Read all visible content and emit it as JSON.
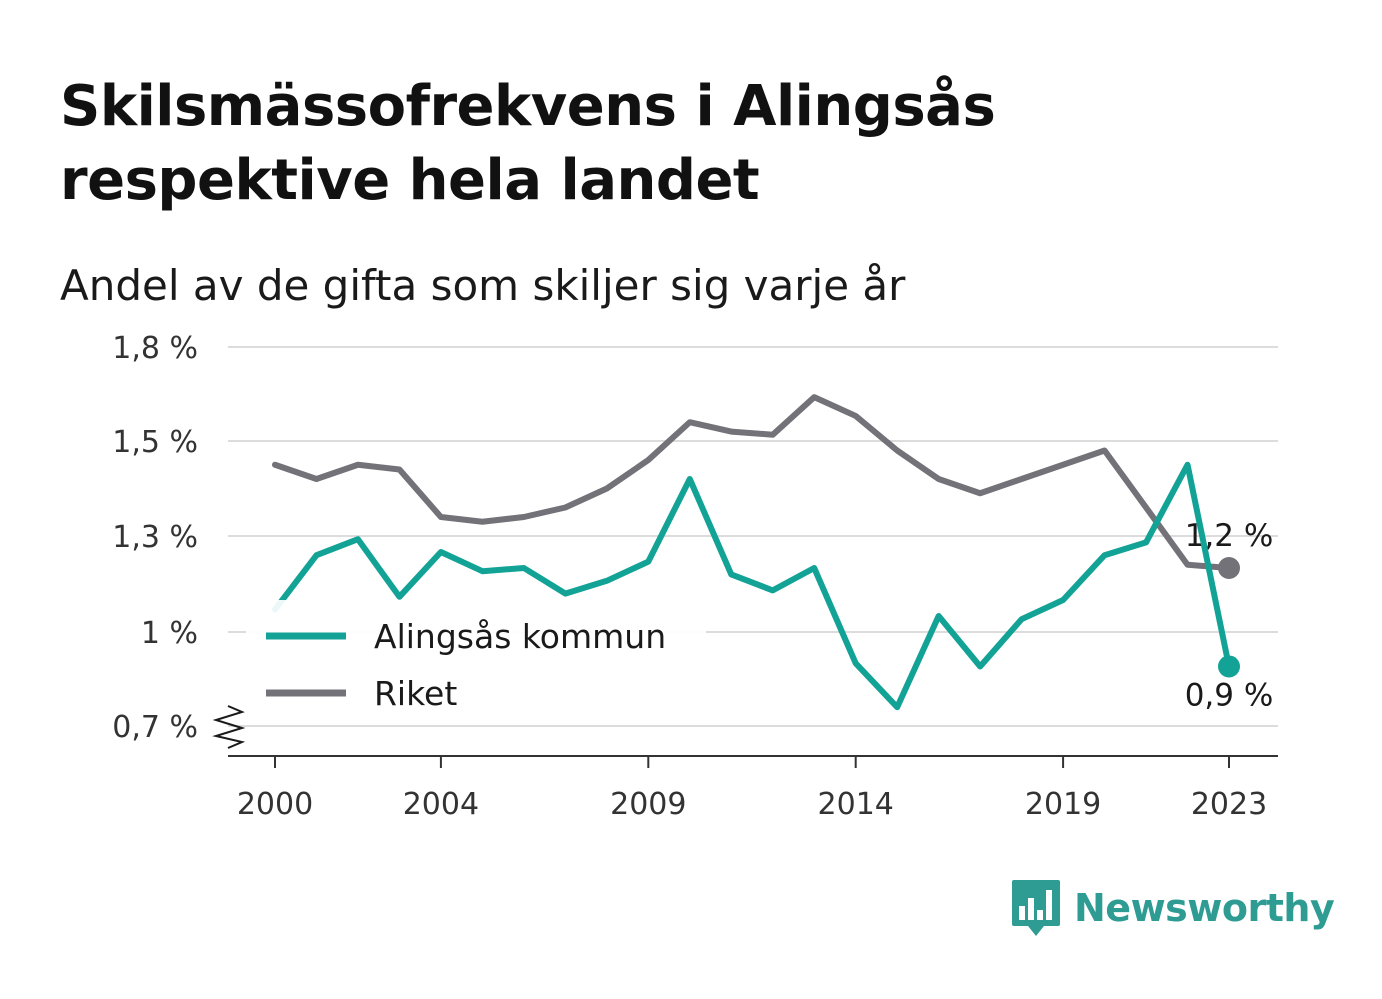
{
  "header": {
    "title": "Skilsmässofrekvens i Alingsås respektive hela landet",
    "subtitle": "Andel av de gifta som skiljer sig varje år"
  },
  "brand": {
    "name": "Newsworthy",
    "color": "#2f9c94",
    "icon": "bar-chart-speech-bubble-icon"
  },
  "chart_data": {
    "type": "line",
    "title": "Skilsmässofrekvens i Alingsås respektive hela landet",
    "subtitle": "Andel av de gifta som skiljer sig varje år",
    "x": [
      2000,
      2001,
      2002,
      2003,
      2004,
      2005,
      2006,
      2007,
      2008,
      2009,
      2010,
      2011,
      2012,
      2013,
      2014,
      2015,
      2016,
      2017,
      2018,
      2019,
      2020,
      2021,
      2022,
      2023
    ],
    "x_ticks": [
      2000,
      2004,
      2009,
      2014,
      2019,
      2023
    ],
    "y_ticks": [
      {
        "value": 0.7,
        "label": "0,7 %"
      },
      {
        "value": 1.0,
        "label": "1 %"
      },
      {
        "value": 1.3,
        "label": "1,3 %"
      },
      {
        "value": 1.5,
        "label": "1,5 %"
      },
      {
        "value": 1.8,
        "label": "1,8 %"
      }
    ],
    "ylim": [
      0.7,
      1.8
    ],
    "y_axis_break": true,
    "grid": true,
    "legend_position": "bottom-left",
    "series": [
      {
        "name": "Alingsås kommun",
        "color": "#13a396",
        "values": [
          1.07,
          1.24,
          1.29,
          1.11,
          1.25,
          1.19,
          1.2,
          1.12,
          1.16,
          1.22,
          1.42,
          1.18,
          1.13,
          1.2,
          0.9,
          0.76,
          1.05,
          0.89,
          1.04,
          1.1,
          1.24,
          1.28,
          1.45,
          0.89
        ],
        "end_label": "0,9 %"
      },
      {
        "name": "Riket",
        "color": "#737278",
        "values": [
          1.45,
          1.42,
          1.45,
          1.44,
          1.34,
          1.33,
          1.34,
          1.36,
          1.4,
          1.46,
          1.56,
          1.53,
          1.52,
          1.64,
          1.58,
          1.48,
          1.42,
          1.39,
          1.42,
          1.45,
          1.48,
          1.36,
          1.21,
          1.2
        ],
        "end_label": "1,2 %"
      }
    ]
  }
}
